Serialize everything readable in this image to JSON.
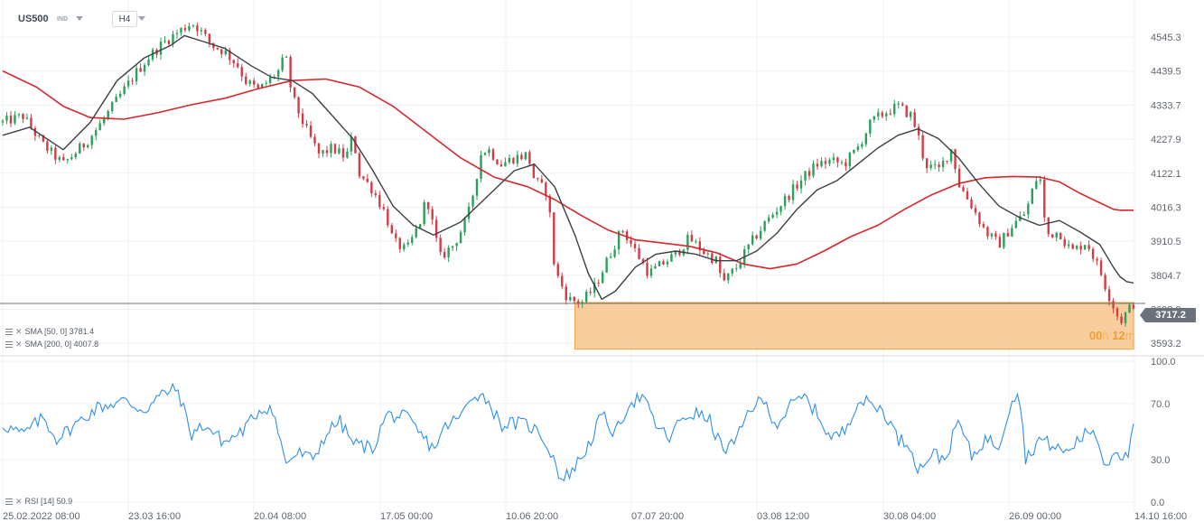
{
  "header": {
    "symbol": "US500",
    "market": "IND",
    "timeframe": "H4"
  },
  "indicators": [
    {
      "label": "SMA [50, 0] 3781.4",
      "color": "#3b3f46"
    },
    {
      "label": "SMA [200, 0] 4007.8",
      "color": "#d4282c"
    }
  ],
  "rsi_label": "RSI [14] 50.9",
  "last_price_label": "3717.2",
  "countdown": {
    "hours": "00",
    "h_unit": "h",
    "minutes": "12",
    "m_unit": "m"
  },
  "colors": {
    "up": "#2aa05a",
    "down": "#d43c44",
    "sma50": "#3b3f46",
    "sma200": "#d4282c",
    "rsi": "#2f8fe8",
    "zone_fill": "#f7c58e",
    "zone_stroke": "#f0a040"
  },
  "chart_data": [
    {
      "type": "candlestick",
      "symbol": "US500",
      "timeframe": "H4",
      "y_axis": {
        "range": [
          3560,
          4610
        ],
        "ticks": [
          4545.3,
          4439.5,
          4333.7,
          4227.9,
          4122.1,
          4016.3,
          3910.5,
          3804.7,
          3698.9,
          3593.2
        ]
      },
      "x_axis": {
        "ticks": [
          "25.02.2022 08:00",
          "23.03 16:00",
          "20.04 08:00",
          "17.05 00:00",
          "10.06 20:00",
          "07.07 20:00",
          "03.08 12:00",
          "30.08 04:00",
          "26.09 00:00",
          "14.10 16:00"
        ]
      },
      "price_path": [
        [
          0,
          4280
        ],
        [
          3,
          4300
        ],
        [
          6,
          4210
        ],
        [
          9,
          4150
        ],
        [
          12,
          4210
        ],
        [
          14,
          4260
        ],
        [
          16,
          4320
        ],
        [
          18,
          4380
        ],
        [
          20,
          4440
        ],
        [
          22,
          4490
        ],
        [
          24,
          4530
        ],
        [
          26,
          4560
        ],
        [
          28,
          4590
        ],
        [
          29,
          4575
        ],
        [
          31,
          4520
        ],
        [
          33,
          4500
        ],
        [
          35,
          4455
        ],
        [
          36,
          4410
        ],
        [
          38,
          4380
        ],
        [
          41,
          4440
        ],
        [
          42,
          4490
        ],
        [
          43,
          4360
        ],
        [
          45,
          4260
        ],
        [
          47,
          4180
        ],
        [
          49,
          4200
        ],
        [
          51,
          4170
        ],
        [
          52,
          4240
        ],
        [
          53,
          4120
        ],
        [
          55,
          4070
        ],
        [
          57,
          3990
        ],
        [
          58,
          3910
        ],
        [
          60,
          3880
        ],
        [
          62,
          3970
        ],
        [
          63,
          4050
        ],
        [
          64,
          3950
        ],
        [
          65,
          3860
        ],
        [
          67,
          3900
        ],
        [
          69,
          3980
        ],
        [
          70,
          4070
        ],
        [
          71,
          4180
        ],
        [
          72,
          4200
        ],
        [
          74,
          4150
        ],
        [
          76,
          4170
        ],
        [
          78,
          4180
        ],
        [
          79,
          4100
        ],
        [
          81,
          4060
        ],
        [
          82,
          3820
        ],
        [
          84,
          3730
        ],
        [
          86,
          3720
        ],
        [
          88,
          3770
        ],
        [
          90,
          3860
        ],
        [
          92,
          3950
        ],
        [
          94,
          3880
        ],
        [
          96,
          3810
        ],
        [
          98,
          3840
        ],
        [
          100,
          3870
        ],
        [
          102,
          3920
        ],
        [
          104,
          3880
        ],
        [
          106,
          3850
        ],
        [
          107,
          3780
        ],
        [
          109,
          3830
        ],
        [
          111,
          3900
        ],
        [
          113,
          3960
        ],
        [
          115,
          4010
        ],
        [
          117,
          4060
        ],
        [
          119,
          4110
        ],
        [
          121,
          4150
        ],
        [
          123,
          4160
        ],
        [
          125,
          4150
        ],
        [
          127,
          4200
        ],
        [
          129,
          4280
        ],
        [
          131,
          4310
        ],
        [
          133,
          4330
        ],
        [
          135,
          4300
        ],
        [
          136,
          4240
        ],
        [
          137,
          4150
        ],
        [
          139,
          4130
        ],
        [
          141,
          4200
        ],
        [
          142,
          4090
        ],
        [
          144,
          4020
        ],
        [
          146,
          3940
        ],
        [
          148,
          3900
        ],
        [
          150,
          3960
        ],
        [
          152,
          4000
        ],
        [
          153,
          4070
        ],
        [
          154,
          4130
        ],
        [
          155,
          3930
        ],
        [
          157,
          3940
        ],
        [
          158,
          3900
        ],
        [
          159,
          3880
        ],
        [
          161,
          3910
        ],
        [
          163,
          3820
        ],
        [
          164,
          3760
        ],
        [
          165,
          3710
        ],
        [
          166,
          3660
        ],
        [
          167,
          3690
        ],
        [
          168,
          3717
        ]
      ]
    },
    {
      "type": "line",
      "name": "SMA [50, 0]",
      "values": [
        [
          0,
          4240
        ],
        [
          4,
          4265
        ],
        [
          9,
          4195
        ],
        [
          13,
          4280
        ],
        [
          17,
          4410
        ],
        [
          21,
          4480
        ],
        [
          25,
          4520
        ],
        [
          27,
          4550
        ],
        [
          30,
          4530
        ],
        [
          33,
          4510
        ],
        [
          37,
          4455
        ],
        [
          40,
          4420
        ],
        [
          43,
          4410
        ],
        [
          46,
          4370
        ],
        [
          49,
          4300
        ],
        [
          52,
          4230
        ],
        [
          55,
          4130
        ],
        [
          58,
          4020
        ],
        [
          61,
          3960
        ],
        [
          64,
          3930
        ],
        [
          68,
          3970
        ],
        [
          72,
          4050
        ],
        [
          76,
          4130
        ],
        [
          79,
          4150
        ],
        [
          82,
          4080
        ],
        [
          85,
          3930
        ],
        [
          87,
          3810
        ],
        [
          89,
          3730
        ],
        [
          91,
          3755
        ],
        [
          94,
          3830
        ],
        [
          97,
          3870
        ],
        [
          100,
          3880
        ],
        [
          103,
          3870
        ],
        [
          106,
          3850
        ],
        [
          109,
          3850
        ],
        [
          112,
          3880
        ],
        [
          115,
          3935
        ],
        [
          118,
          4010
        ],
        [
          121,
          4070
        ],
        [
          124,
          4100
        ],
        [
          127,
          4150
        ],
        [
          130,
          4200
        ],
        [
          133,
          4240
        ],
        [
          136,
          4260
        ],
        [
          139,
          4230
        ],
        [
          142,
          4170
        ],
        [
          145,
          4090
        ],
        [
          148,
          4020
        ],
        [
          151,
          3985
        ],
        [
          154,
          3960
        ],
        [
          157,
          3975
        ],
        [
          160,
          3940
        ],
        [
          163,
          3900
        ],
        [
          165,
          3830
        ],
        [
          166,
          3800
        ],
        [
          167,
          3785
        ],
        [
          168,
          3781
        ]
      ]
    },
    {
      "type": "line",
      "name": "SMA [200, 0]",
      "values": [
        [
          0,
          4440
        ],
        [
          5,
          4390
        ],
        [
          9,
          4330
        ],
        [
          13,
          4295
        ],
        [
          18,
          4290
        ],
        [
          23,
          4310
        ],
        [
          28,
          4335
        ],
        [
          33,
          4355
        ],
        [
          38,
          4385
        ],
        [
          43,
          4410
        ],
        [
          48,
          4415
        ],
        [
          53,
          4390
        ],
        [
          58,
          4330
        ],
        [
          63,
          4250
        ],
        [
          68,
          4170
        ],
        [
          73,
          4110
        ],
        [
          78,
          4080
        ],
        [
          82,
          4040
        ],
        [
          86,
          3990
        ],
        [
          90,
          3945
        ],
        [
          94,
          3915
        ],
        [
          98,
          3905
        ],
        [
          102,
          3895
        ],
        [
          106,
          3875
        ],
        [
          110,
          3840
        ],
        [
          114,
          3825
        ],
        [
          118,
          3840
        ],
        [
          122,
          3880
        ],
        [
          126,
          3925
        ],
        [
          130,
          3960
        ],
        [
          134,
          4010
        ],
        [
          138,
          4055
        ],
        [
          142,
          4090
        ],
        [
          146,
          4108
        ],
        [
          150,
          4112
        ],
        [
          154,
          4110
        ],
        [
          157,
          4095
        ],
        [
          160,
          4060
        ],
        [
          163,
          4030
        ],
        [
          165,
          4010
        ],
        [
          166,
          4007
        ],
        [
          168,
          4007
        ]
      ]
    },
    {
      "type": "area",
      "name": "support-zone",
      "x_range": [
        85,
        168
      ],
      "y_range": [
        3575,
        3720
      ]
    },
    {
      "type": "line",
      "name": "RSI [14]",
      "y_axis": {
        "range": [
          0,
          100
        ],
        "ticks": [
          100.0,
          70.0,
          30.0,
          0.0
        ]
      },
      "values": [
        [
          0,
          55
        ],
        [
          3,
          48
        ],
        [
          6,
          60
        ],
        [
          8,
          45
        ],
        [
          10,
          52
        ],
        [
          14,
          67
        ],
        [
          18,
          72
        ],
        [
          21,
          65
        ],
        [
          24,
          78
        ],
        [
          26,
          80
        ],
        [
          28,
          48
        ],
        [
          30,
          55
        ],
        [
          33,
          42
        ],
        [
          36,
          52
        ],
        [
          38,
          65
        ],
        [
          40,
          68
        ],
        [
          42,
          28
        ],
        [
          44,
          35
        ],
        [
          46,
          30
        ],
        [
          48,
          48
        ],
        [
          50,
          58
        ],
        [
          52,
          42
        ],
        [
          55,
          38
        ],
        [
          57,
          62
        ],
        [
          60,
          60
        ],
        [
          62,
          48
        ],
        [
          64,
          38
        ],
        [
          66,
          55
        ],
        [
          68,
          60
        ],
        [
          70,
          78
        ],
        [
          72,
          73
        ],
        [
          74,
          55
        ],
        [
          76,
          56
        ],
        [
          78,
          55
        ],
        [
          80,
          48
        ],
        [
          82,
          30
        ],
        [
          83,
          15
        ],
        [
          85,
          25
        ],
        [
          87,
          40
        ],
        [
          89,
          62
        ],
        [
          91,
          48
        ],
        [
          93,
          70
        ],
        [
          95,
          75
        ],
        [
          97,
          55
        ],
        [
          99,
          45
        ],
        [
          101,
          60
        ],
        [
          103,
          63
        ],
        [
          105,
          58
        ],
        [
          107,
          37
        ],
        [
          109,
          43
        ],
        [
          111,
          67
        ],
        [
          113,
          72
        ],
        [
          115,
          55
        ],
        [
          117,
          68
        ],
        [
          119,
          75
        ],
        [
          121,
          63
        ],
        [
          123,
          45
        ],
        [
          125,
          50
        ],
        [
          127,
          72
        ],
        [
          129,
          70
        ],
        [
          131,
          64
        ],
        [
          133,
          45
        ],
        [
          135,
          40
        ],
        [
          136,
          22
        ],
        [
          138,
          35
        ],
        [
          140,
          30
        ],
        [
          142,
          58
        ],
        [
          144,
          32
        ],
        [
          146,
          45
        ],
        [
          148,
          40
        ],
        [
          150,
          75
        ],
        [
          151,
          78
        ],
        [
          152,
          30
        ],
        [
          154,
          45
        ],
        [
          156,
          40
        ],
        [
          158,
          35
        ],
        [
          160,
          45
        ],
        [
          162,
          52
        ],
        [
          164,
          25
        ],
        [
          165,
          38
        ],
        [
          166,
          35
        ],
        [
          167,
          30
        ],
        [
          168,
          51
        ]
      ]
    }
  ]
}
